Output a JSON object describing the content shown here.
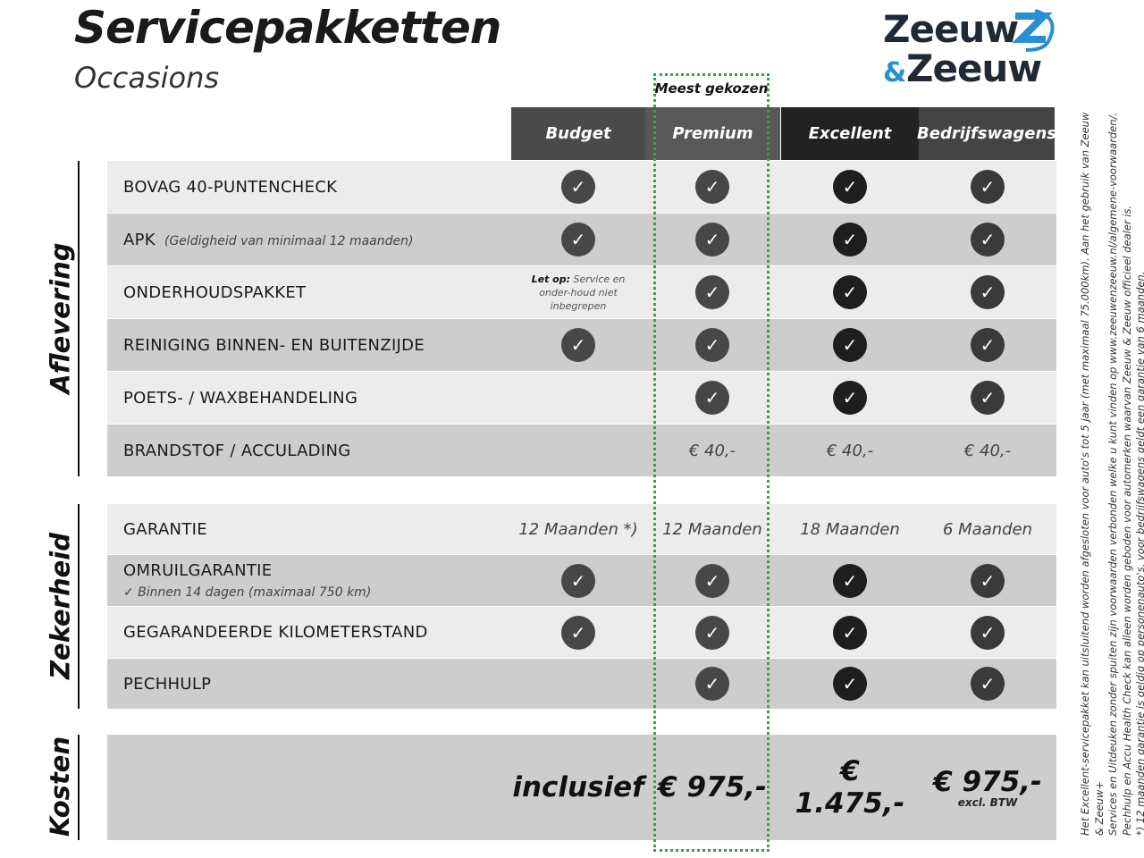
{
  "title": "Servicepakketten",
  "subtitle": "Occasions",
  "logo": {
    "line1": "Zeeuw",
    "amp": "&",
    "line2": "Zeeuw",
    "text": "Zeeuw & Zeeuw",
    "colors": {
      "dark": "#1f2a36",
      "blue": "#2a8fd0"
    }
  },
  "most_chosen": "Meest gekozen",
  "columns": [
    {
      "label": "Budget",
      "bg": "#4a4a4a",
      "check": "#474747"
    },
    {
      "label": "Premium",
      "bg": "#585858",
      "check": "#474747"
    },
    {
      "label": "Excellent",
      "bg": "#222222",
      "check": "#1e1e1e"
    },
    {
      "label": "Bedrijfswagens",
      "bg": "#444444",
      "check": "#3a3a3a"
    }
  ],
  "check_icon": "check-circle-icon",
  "sections": [
    {
      "label": "Aflevering",
      "rows": [
        {
          "label": "BOVAG 40-PUNTENCHECK",
          "sub": "",
          "cells": [
            {
              "t": "check"
            },
            {
              "t": "check"
            },
            {
              "t": "check"
            },
            {
              "t": "check"
            }
          ]
        },
        {
          "label": "APK",
          "sub": "(Geldigheid van minimaal 12 maanden)",
          "cells": [
            {
              "t": "check"
            },
            {
              "t": "check"
            },
            {
              "t": "check"
            },
            {
              "t": "check"
            }
          ]
        },
        {
          "label": "ONDERHOUDSPAKKET",
          "sub": "",
          "cells": [
            {
              "t": "note",
              "bold": "Let op:",
              "text": " Service en onder-houd niet inbegrepen"
            },
            {
              "t": "check"
            },
            {
              "t": "check"
            },
            {
              "t": "check"
            }
          ]
        },
        {
          "label": "REINIGING BINNEN- EN BUITENZIJDE",
          "sub": "",
          "cells": [
            {
              "t": "check"
            },
            {
              "t": "check"
            },
            {
              "t": "check"
            },
            {
              "t": "check"
            }
          ]
        },
        {
          "label": "POETS- / WAXBEHANDELING",
          "sub": "",
          "cells": [
            {
              "t": "empty"
            },
            {
              "t": "check"
            },
            {
              "t": "check"
            },
            {
              "t": "check"
            }
          ]
        },
        {
          "label": "BRANDSTOF / ACCULADING",
          "sub": "",
          "cells": [
            {
              "t": "empty"
            },
            {
              "t": "text",
              "v": "€ 40,-"
            },
            {
              "t": "text",
              "v": "€ 40,-"
            },
            {
              "t": "text",
              "v": "€ 40,-"
            }
          ]
        }
      ]
    },
    {
      "label": "Zekerheid",
      "rows": [
        {
          "label": "GARANTIE",
          "sub": "",
          "cells": [
            {
              "t": "text",
              "v": "12 Maanden *)"
            },
            {
              "t": "text",
              "v": "12 Maanden"
            },
            {
              "t": "text",
              "v": "18 Maanden"
            },
            {
              "t": "text",
              "v": "6 Maanden"
            }
          ]
        },
        {
          "label": "OMRUILGARANTIE",
          "sub": "",
          "detail": "✓   Binnen 14 dagen (maximaal 750 km)",
          "cells": [
            {
              "t": "check"
            },
            {
              "t": "check"
            },
            {
              "t": "check"
            },
            {
              "t": "check"
            }
          ]
        },
        {
          "label": "GEGARANDEERDE KILOMETERSTAND",
          "sub": "",
          "cells": [
            {
              "t": "check"
            },
            {
              "t": "check"
            },
            {
              "t": "check"
            },
            {
              "t": "check"
            }
          ]
        },
        {
          "label": "PECHHULP",
          "sub": "",
          "cells": [
            {
              "t": "empty"
            },
            {
              "t": "check"
            },
            {
              "t": "check"
            },
            {
              "t": "check"
            }
          ]
        }
      ]
    }
  ],
  "costs": {
    "label": "Kosten",
    "values": [
      "inclusief",
      "€ 975,-",
      "€ 1.475,-",
      "€ 975,-"
    ],
    "note": "excl. BTW"
  },
  "disclaimer": [
    "Het Excellent-servicepakket kan uitsluitend worden afgesloten voor auto's tot 5 jaar (met maximaal 75.000km). Aan het gebruik van Zeeuw & Zeeuw+",
    "Services en Uitdeuken zonder spuiten zijn voorwaarden verbonden welke u kunt vinden op www.zeeuwenzeeuw.nl/algemene-voorwaarden/.",
    "Pechhulp en Accu Health Check kan alleen worden geboden voor automerken waarvan Zeeuw & Zeeuw officieel dealer is.",
    "*) 12 maanden garantie is geldig op personenauto's, voor bedrijfswagens geldt een garantie van 6 maanden."
  ]
}
